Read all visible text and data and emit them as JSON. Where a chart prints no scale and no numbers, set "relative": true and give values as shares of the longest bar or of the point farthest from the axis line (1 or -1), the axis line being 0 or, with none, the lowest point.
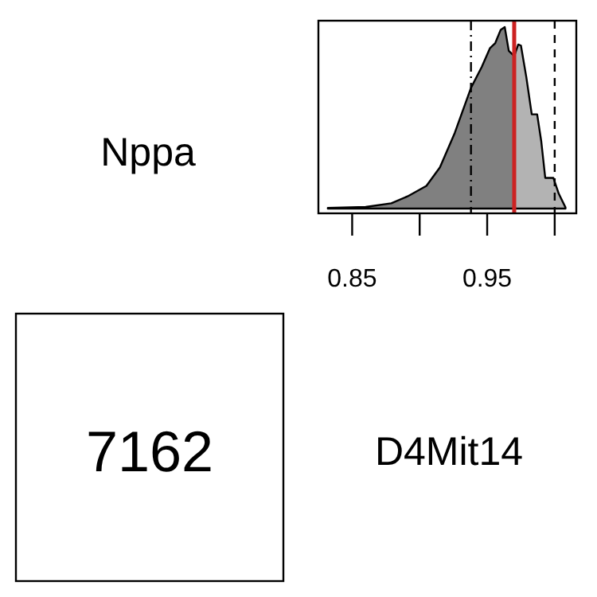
{
  "chart_data": [
    {
      "type": "area",
      "relative": true,
      "xlim": [
        0.825,
        1.016
      ],
      "xticks": [
        0.85,
        {
          "value": 0.9,
          "label": null
        },
        0.95,
        {
          "value": 1.0,
          "label": null
        }
      ],
      "tick_labels": "x",
      "series": [
        {
          "color": "#808080",
          "x": [
            0.832,
            0.86,
            0.879,
            0.891,
            0.905,
            0.915,
            0.926,
            0.938,
            0.946,
            0.952,
            0.956,
            0.96,
            0.963,
            0.966,
            0.97
          ],
          "values": [
            0.003,
            0.009,
            0.029,
            0.067,
            0.125,
            0.227,
            0.417,
            0.665,
            0.781,
            0.883,
            0.912,
            0.985,
            1.0,
            0.869,
            0.84
          ]
        },
        {
          "color": "#b3b3b3",
          "x": [
            0.97,
            0.973,
            0.975,
            0.979,
            0.983,
            0.987,
            0.99,
            0.993,
            0.999,
            1.003,
            1.008
          ],
          "values": [
            0.84,
            0.904,
            0.898,
            0.723,
            0.519,
            0.519,
            0.373,
            0.169,
            0.169,
            0.082,
            0.006
          ]
        }
      ],
      "ref_lines": [
        {
          "axis": "x",
          "value": 0.938,
          "color": "#000000",
          "line_style": "dashdot"
        },
        {
          "axis": "x",
          "value": 0.97,
          "color": "#cc2222",
          "line_style": "solid"
        },
        {
          "axis": "x",
          "value": 1.0,
          "color": "#000000",
          "line_style": "dashed"
        }
      ]
    },
    {
      "type": "other",
      "annotations": [
        "Nppa",
        "7162",
        "D4Mit14"
      ]
    }
  ]
}
